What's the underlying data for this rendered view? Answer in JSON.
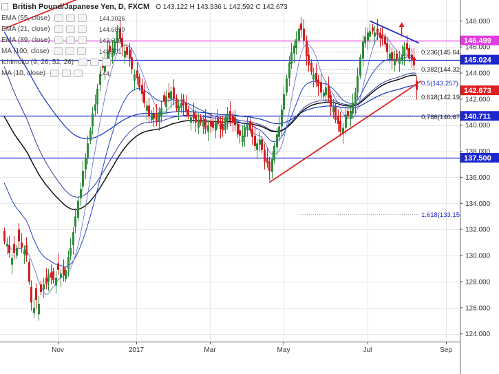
{
  "header": {
    "symbol_title": "British Pound/Japanese Yen, D, FXCM",
    "ohlc": "O 143.122  H 143.336  L 142.592  C 142.673"
  },
  "indicators": [
    {
      "label": "EMA (55, close)",
      "value": "144.3026",
      "color": "#1f3fc4"
    },
    {
      "label": "EMA (21, close)",
      "value": "144.6899",
      "color": "#1f3fc4"
    },
    {
      "label": "EMA (89, close)",
      "value": "143.619",
      "color": "#1a1a1a"
    },
    {
      "label": "MA (100, close)",
      "value": "143.001",
      "color": "#1f3fc4"
    },
    {
      "label": "Ichimoku (9, 26, 52, 26)",
      "value": "",
      "color": "#1f3fc4"
    },
    {
      "label": "MA (10, close)",
      "value": "144.",
      "color": "#1f3fc4"
    }
  ],
  "colors": {
    "up": "#2e8b3a",
    "down": "#d21e1e",
    "grid": "#e6e6e6",
    "trendline": "#e02020",
    "hline": "#1c27cf",
    "fib": "#333333",
    "magenta": "#e03ce0"
  },
  "chart_data": {
    "type": "candlestick",
    "x_axis": {
      "labels": [
        "Nov",
        "2017",
        "Mar",
        "May",
        "Jul",
        "Sep"
      ]
    },
    "y_axis": {
      "range": [
        123.4,
        149.6
      ],
      "ticks": [
        124.0,
        126.0,
        128.0,
        130.0,
        132.0,
        134.0,
        136.0,
        138.0,
        140.0,
        142.0,
        144.0,
        146.0,
        148.0
      ],
      "tick_labels": [
        "124.000",
        "126.000",
        "128.000",
        "130.000",
        "132.000",
        "134.000",
        "136.000",
        "138.000",
        "140.000",
        "142.000",
        "144.000",
        "146.000",
        "148.000"
      ]
    },
    "price_labels": [
      {
        "value": 146.499,
        "text": "146.499",
        "color": "#e03ce0"
      },
      {
        "value": 145.024,
        "text": "145.024",
        "color": "#1c27cf"
      },
      {
        "value": 142.673,
        "text": "142.673",
        "color": "#e02020"
      },
      {
        "value": 140.711,
        "text": "140.711",
        "color": "#1c27cf"
      },
      {
        "value": 137.5,
        "text": "137.500",
        "color": "#1c27cf"
      }
    ],
    "horizontal_lines": [
      {
        "value": 146.499,
        "color": "#e03ce0"
      },
      {
        "value": 145.024,
        "color": "#1c27cf"
      },
      {
        "value": 140.711,
        "color": "#1c27cf"
      },
      {
        "value": 137.5,
        "color": "#1c27cf"
      }
    ],
    "fib_levels": [
      {
        "value": 145.64,
        "text": "0.236(145.64"
      },
      {
        "value": 144.32,
        "text": "0.382(144.32"
      },
      {
        "value": 143.257,
        "text": "0.5(143.257)"
      },
      {
        "value": 142.19,
        "text": "0.618(142.19"
      },
      {
        "value": 140.67,
        "text": "0.786(140.67"
      },
      {
        "value": 133.15,
        "text": "1.618(133.15"
      }
    ],
    "trendlines": [
      {
        "from": [
          0,
          147.4
        ],
        "to": [
          33,
          149.9
        ],
        "color": "#e02020"
      },
      {
        "from": [
          108,
          135.6
        ],
        "to": [
          170,
          143.4
        ],
        "color": "#e02020"
      },
      {
        "from": [
          149,
          148.0
        ],
        "to": [
          169,
          146.3
        ],
        "color": "#1c27cf"
      }
    ],
    "arrow": {
      "x": 162,
      "y_from": 146.8,
      "y_to": 147.8,
      "color": "#e02020"
    },
    "candles": {
      "close": [
        131.1,
        130.9,
        130.2,
        129.8,
        130.2,
        130.6,
        131.1,
        130.6,
        130.4,
        130.0,
        128.0,
        126.4,
        126.0,
        126.6,
        126.3,
        127.2,
        127.8,
        127.8,
        128.6,
        128.3,
        128.1,
        128.3,
        128.9,
        128.6,
        128.5,
        128.9,
        129.9,
        130.6,
        131.8,
        133.0,
        134.2,
        135.1,
        136.5,
        137.5,
        138.6,
        139.6,
        140.9,
        141.6,
        142.8,
        143.9,
        144.4,
        145.0,
        145.7,
        145.6,
        145.9,
        146.4,
        147.2,
        146.6,
        146.0,
        145.7,
        145.4,
        145.1,
        144.3,
        143.9,
        143.6,
        142.9,
        142.4,
        141.7,
        141.5,
        140.7,
        140.9,
        140.5,
        140.3,
        141.0,
        141.3,
        141.8,
        142.2,
        142.1,
        142.6,
        142.0,
        141.3,
        141.5,
        141.7,
        141.5,
        141.1,
        140.7,
        140.6,
        140.5,
        140.2,
        140.3,
        140.2,
        140.3,
        139.7,
        140.0,
        139.9,
        139.8,
        140.2,
        140.1,
        139.7,
        139.6,
        140.6,
        140.9,
        140.3,
        140.2,
        140.0,
        139.3,
        139.2,
        139.2,
        139.8,
        140.1,
        139.6,
        139.1,
        138.4,
        138.6,
        138.9,
        138.1,
        137.2,
        137.1,
        136.5,
        137.4,
        138.4,
        139.3,
        139.9,
        141.2,
        142.4,
        143.6,
        144.8,
        145.6,
        146.1,
        146.6,
        147.4,
        147.3,
        146.5,
        145.3,
        144.6,
        144.1,
        143.9,
        143.3,
        143.0,
        142.5,
        142.5,
        142.9,
        142.1,
        141.4,
        141.4,
        140.4,
        140.1,
        139.5,
        139.8,
        140.8,
        140.7,
        141.1,
        141.7,
        142.5,
        143.8,
        145.2,
        146.4,
        146.8,
        147.1,
        147.2,
        147.2,
        147.1,
        146.9,
        146.7,
        146.6,
        146.2,
        145.6,
        145.5,
        145.0,
        145.1,
        145.1,
        145.2,
        145.4,
        146.0,
        145.8,
        145.1,
        145.0,
        144.6,
        142.7
      ],
      "open_offset": [
        0.8,
        -0.2,
        0.6,
        -0.5,
        0.7,
        -0.6,
        0.9,
        0.4,
        -0.3,
        0.8,
        1.5,
        1.2,
        -0.4,
        0.9,
        -0.8,
        0.6,
        -0.4,
        0.5,
        -0.6,
        0.4,
        0.7,
        -0.6,
        0.5,
        -0.3,
        0.6,
        -0.7,
        -0.9,
        -0.6,
        -1.0,
        -0.8,
        -1.3,
        -0.7,
        -1.2,
        -0.9,
        -1.1,
        -0.8,
        -1.0,
        -0.5,
        -1.2,
        -0.8,
        0.6,
        -0.9,
        -0.6,
        0.5,
        -0.7,
        -0.8,
        -0.9,
        0.8,
        0.7,
        -0.5,
        0.6,
        0.7,
        0.9,
        -0.5,
        0.6,
        0.8,
        0.7,
        0.9,
        -0.4,
        0.8,
        -0.5,
        0.4,
        0.6,
        -0.7,
        -0.6,
        0.5,
        -0.8,
        0.4,
        -0.6,
        0.9,
        0.8,
        -0.5,
        -0.4,
        0.5,
        0.6,
        0.5,
        -0.4,
        0.5,
        0.6,
        -0.5,
        0.4,
        -0.4,
        0.8,
        -0.5,
        0.4,
        0.5,
        -0.6,
        0.4,
        0.6,
        0.5,
        -1.0,
        -0.6,
        0.8,
        0.5,
        0.6,
        0.8,
        0.4,
        -0.5,
        -0.7,
        -0.5,
        0.7,
        0.6,
        0.8,
        -0.5,
        -0.4,
        0.8,
        0.9,
        0.4,
        0.7,
        -1.0,
        -1.1,
        -1.0,
        -0.8,
        -1.3,
        -1.2,
        -1.1,
        -1.2,
        -0.9,
        -0.6,
        -0.7,
        -0.9,
        0.5,
        0.9,
        1.2,
        0.8,
        0.7,
        -0.4,
        0.7,
        0.5,
        0.8,
        -0.3,
        -0.6,
        0.9,
        0.9,
        -0.4,
        1.0,
        0.6,
        0.8,
        -0.5,
        -1.0,
        0.4,
        -0.6,
        -0.8,
        -0.9,
        -1.3,
        -1.4,
        -1.3,
        -0.5,
        -0.6,
        -0.4,
        0.3,
        -0.3,
        0.5,
        0.4,
        0.3,
        0.6,
        0.7,
        -0.4,
        0.6,
        -0.5,
        0.4,
        -0.5,
        -0.4,
        -0.7,
        0.5,
        0.8,
        0.4,
        0.6,
        0.7,
        0.45
      ]
    }
  }
}
